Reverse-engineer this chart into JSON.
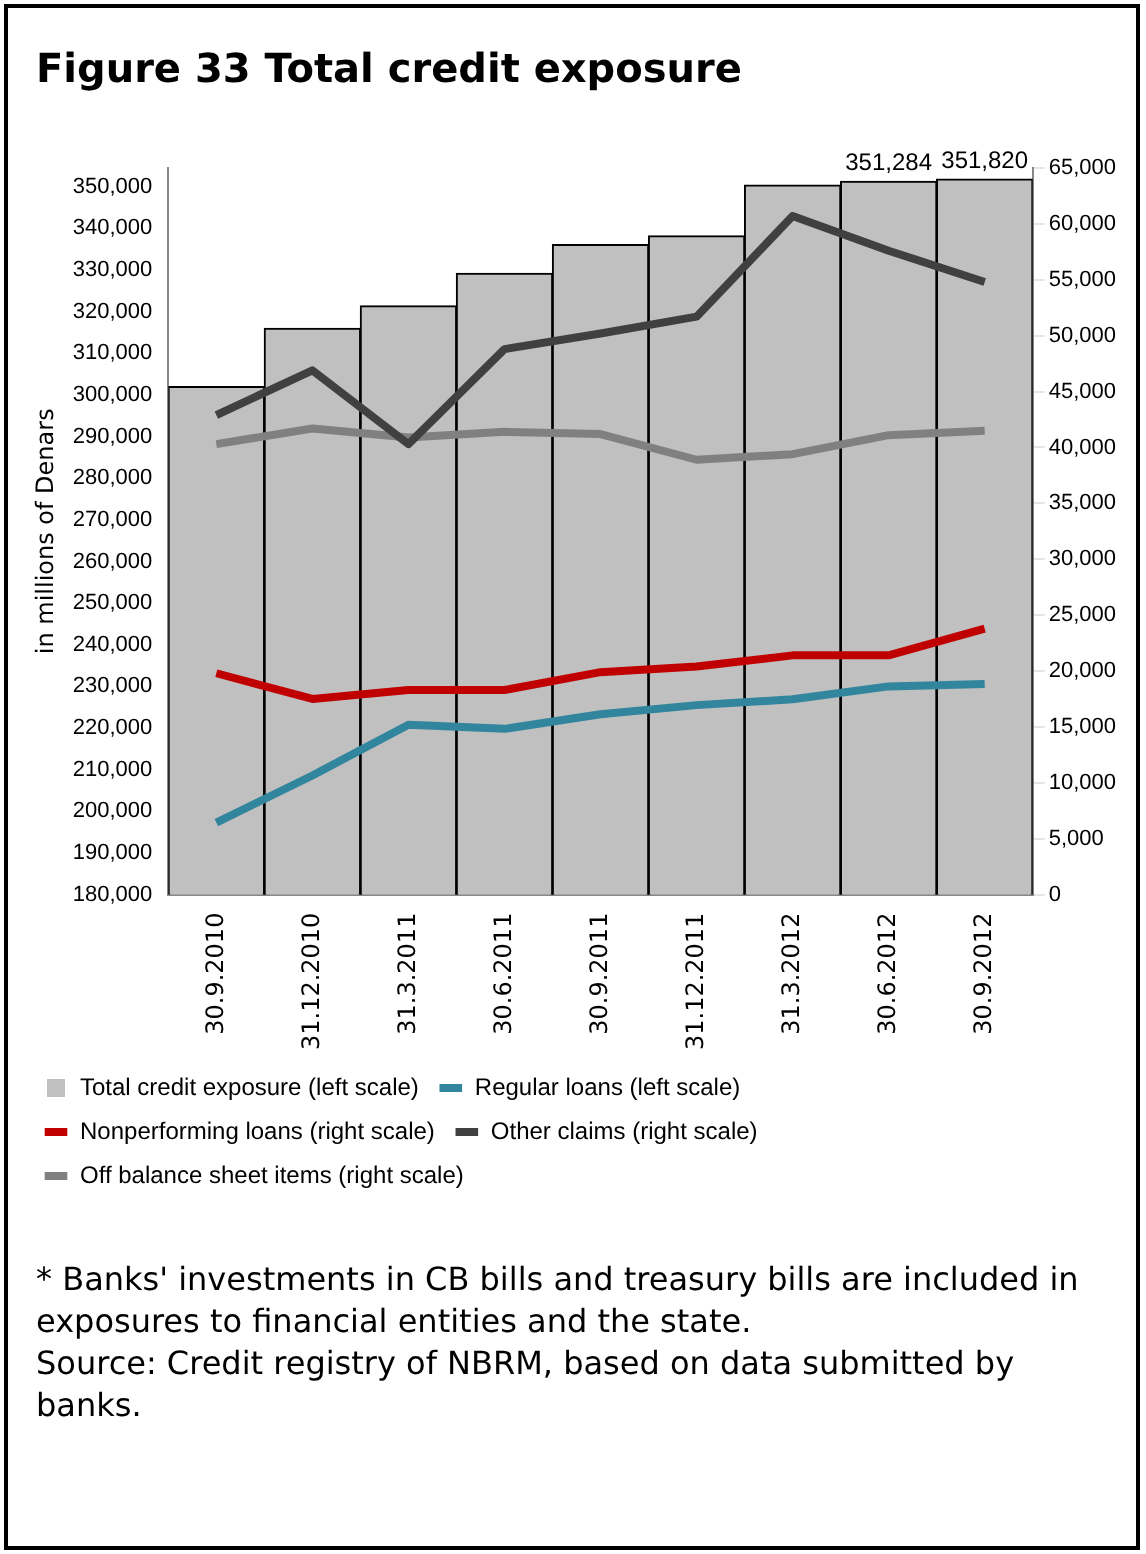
{
  "chart_data": {
    "type": "bar",
    "title": "Figure 33 Total credit exposure",
    "ylabel": "in millions of Denars",
    "categories": [
      "30.9.2010",
      "31.12.2010",
      "31.3.2011",
      "30.6.2011",
      "30.9.2011",
      "31.12.2011",
      "31.3.2012",
      "30.6.2012",
      "30.9.2012"
    ],
    "series": [
      {
        "name": "Total credit exposure (left scale)",
        "color": "#c0c0c0",
        "values": [
          302000,
          316000,
          321400,
          329200,
          336100,
          338200,
          350400,
          351284,
          351820
        ],
        "value_labels": [
          null,
          null,
          null,
          null,
          null,
          null,
          null,
          "351,284",
          "351,820"
        ]
      },
      {
        "name": "Regular loans (left scale)",
        "type": "line",
        "color": "#31859c",
        "values": [
          197300,
          208600,
          220800,
          219800,
          223300,
          225500,
          226900,
          230000,
          230600
        ]
      },
      {
        "name": "Nonperforming loans (right scale)",
        "type": "line",
        "axis": "y2",
        "color": "#c00000",
        "values": [
          19800,
          17500,
          18300,
          18300,
          19900,
          20400,
          21400,
          21400,
          23800
        ]
      },
      {
        "name": "Other claims (right scale)",
        "type": "line",
        "axis": "y2",
        "color": "#404040",
        "values": [
          42900,
          46900,
          40300,
          48800,
          50200,
          51700,
          60700,
          57600,
          54800
        ]
      },
      {
        "name": "Off balance sheet items (right scale)",
        "type": "line",
        "axis": "y2",
        "color": "#808080",
        "values": [
          40300,
          41700,
          40900,
          41400,
          41200,
          38900,
          39400,
          41100,
          41500
        ]
      }
    ],
    "ylim": [
      180000,
      354500
    ],
    "yticks": [
      {
        "value": 180000,
        "label": "180,000"
      },
      {
        "value": 190000,
        "label": "190,000"
      },
      {
        "value": 200000,
        "label": "200,000"
      },
      {
        "value": 210000,
        "label": "210,000"
      },
      {
        "value": 220000,
        "label": "220,000"
      },
      {
        "value": 230000,
        "label": "230,000"
      },
      {
        "value": 240000,
        "label": "240,000"
      },
      {
        "value": 250000,
        "label": "250,000"
      },
      {
        "value": 260000,
        "label": "260,000"
      },
      {
        "value": 270000,
        "label": "270,000"
      },
      {
        "value": 280000,
        "label": "280,000"
      },
      {
        "value": 290000,
        "label": "290,000"
      },
      {
        "value": 300000,
        "label": "300,000"
      },
      {
        "value": 310000,
        "label": "310,000"
      },
      {
        "value": 320000,
        "label": "320,000"
      },
      {
        "value": 330000,
        "label": "330,000"
      },
      {
        "value": 340000,
        "label": "340,000"
      },
      {
        "value": 350000,
        "label": "350,000"
      }
    ],
    "y2lim": [
      0,
      65000
    ],
    "y2ticks": [
      0,
      {
        "value": 5000,
        "label": "5,000"
      },
      {
        "value": 10000,
        "label": "10,000"
      },
      {
        "value": 15000,
        "label": "15,000"
      },
      {
        "value": 20000,
        "label": "20,000"
      },
      {
        "value": 25000,
        "label": "25,000"
      },
      {
        "value": 30000,
        "label": "30,000"
      },
      {
        "value": 35000,
        "label": "35,000"
      },
      {
        "value": 40000,
        "label": "40,000"
      },
      {
        "value": 45000,
        "label": "45,000"
      },
      {
        "value": 50000,
        "label": "50,000"
      },
      {
        "value": 55000,
        "label": "55,000"
      },
      {
        "value": 60000,
        "label": "60,000"
      },
      {
        "value": 65000,
        "label": "65,000"
      }
    ],
    "grid": false,
    "legend": "bottom",
    "annotations": [
      "* Banks' investments in CB bills and treasury bills are included in exposures to financial entities and the state.",
      "Source: Credit registry of NBRM, based on data submitted by banks."
    ]
  }
}
